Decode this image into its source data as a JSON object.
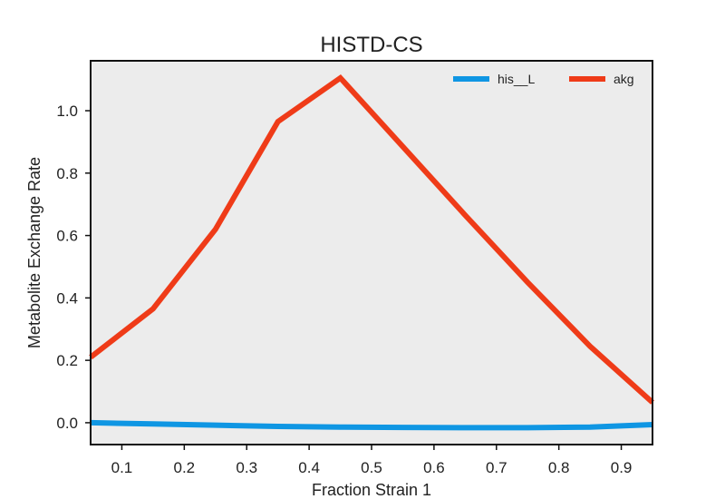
{
  "chart_data": {
    "type": "line",
    "title": "HISTD-CS",
    "xlabel": "Fraction Strain 1",
    "ylabel": "Metabolite Exchange Rate",
    "xlim": [
      0.05,
      0.95
    ],
    "ylim": [
      -0.07,
      1.16
    ],
    "xticks": [
      0.1,
      0.2,
      0.3,
      0.4,
      0.5,
      0.6,
      0.7,
      0.8,
      0.9
    ],
    "xtick_labels": [
      "0.1",
      "0.2",
      "0.3",
      "0.4",
      "0.5",
      "0.6",
      "0.7",
      "0.8",
      "0.9"
    ],
    "yticks": [
      0.0,
      0.2,
      0.4,
      0.6,
      0.8,
      1.0
    ],
    "ytick_labels": [
      "0.0",
      "0.2",
      "0.4",
      "0.6",
      "0.8",
      "1.0"
    ],
    "grid": false,
    "legend_position": "top-right",
    "background": "#ececec",
    "x": [
      0.05,
      0.15,
      0.25,
      0.35,
      0.45,
      0.55,
      0.65,
      0.75,
      0.85,
      0.95
    ],
    "series": [
      {
        "name": "his__L",
        "color": "#0f96e3",
        "values": [
          0.0,
          -0.004,
          -0.008,
          -0.012,
          -0.014,
          -0.015,
          -0.016,
          -0.016,
          -0.014,
          -0.006
        ]
      },
      {
        "name": "akg",
        "color": "#ef3b18",
        "values": [
          0.21,
          0.365,
          0.62,
          0.965,
          1.105,
          0.885,
          0.665,
          0.45,
          0.245,
          0.065
        ]
      }
    ]
  }
}
